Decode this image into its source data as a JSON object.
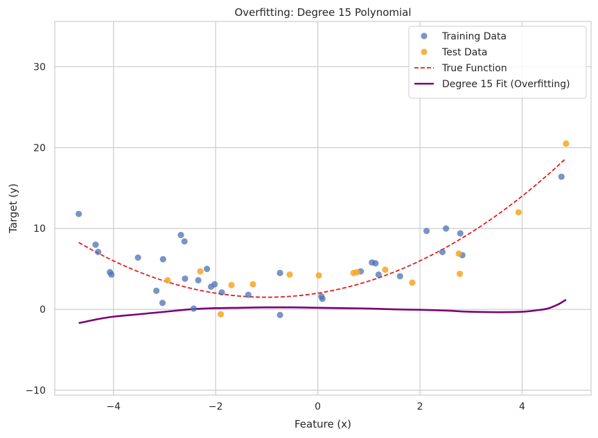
{
  "chart_data": {
    "type": "scatter",
    "title": "Overfitting: Degree 15 Polynomial",
    "xlabel": "Feature (x)",
    "ylabel": "Target (y)",
    "xlim": [
      -5.15,
      5.35
    ],
    "ylim": [
      -10.6,
      35.6
    ],
    "xticks": [
      -4,
      -2,
      0,
      2,
      4
    ],
    "yticks": [
      -10,
      0,
      10,
      20,
      30
    ],
    "grid": true,
    "legend_position": "top-right",
    "colors": {
      "training": "#4c72b0",
      "test": "#f5a623",
      "true_function": "#e31a1c",
      "fit": "#7a0177",
      "grid": "#cccccc"
    },
    "series": [
      {
        "name": "Training Data",
        "kind": "scatter",
        "points": [
          [
            -4.68,
            11.8
          ],
          [
            -4.35,
            8.0
          ],
          [
            -4.3,
            7.1
          ],
          [
            -4.07,
            4.6
          ],
          [
            -4.04,
            4.3
          ],
          [
            -3.52,
            6.4
          ],
          [
            -3.16,
            2.3
          ],
          [
            -3.04,
            0.8
          ],
          [
            -3.03,
            6.2
          ],
          [
            -2.68,
            9.2
          ],
          [
            -2.61,
            8.4
          ],
          [
            -2.6,
            3.8
          ],
          [
            -2.43,
            0.1
          ],
          [
            -2.34,
            3.6
          ],
          [
            -2.17,
            5.0
          ],
          [
            -2.09,
            2.8
          ],
          [
            -2.02,
            3.1
          ],
          [
            -1.88,
            2.1
          ],
          [
            -1.36,
            1.8
          ],
          [
            -0.74,
            4.5
          ],
          [
            -0.74,
            -0.7
          ],
          [
            0.07,
            1.6
          ],
          [
            0.09,
            1.3
          ],
          [
            0.84,
            4.7
          ],
          [
            1.06,
            5.8
          ],
          [
            1.13,
            5.7
          ],
          [
            1.19,
            4.3
          ],
          [
            1.61,
            4.1
          ],
          [
            2.13,
            9.7
          ],
          [
            2.44,
            7.1
          ],
          [
            2.51,
            10.0
          ],
          [
            2.79,
            9.4
          ],
          [
            2.83,
            6.7
          ],
          [
            4.77,
            16.4
          ]
        ]
      },
      {
        "name": "Test Data",
        "kind": "scatter",
        "points": [
          [
            -2.94,
            3.6
          ],
          [
            -2.3,
            4.7
          ],
          [
            -1.9,
            -0.6
          ],
          [
            -1.69,
            3.0
          ],
          [
            -1.27,
            3.1
          ],
          [
            -0.55,
            4.3
          ],
          [
            0.02,
            4.2
          ],
          [
            0.7,
            4.5
          ],
          [
            0.77,
            4.6
          ],
          [
            1.32,
            4.9
          ],
          [
            1.85,
            3.3
          ],
          [
            2.76,
            6.9
          ],
          [
            2.78,
            4.4
          ],
          [
            3.93,
            12.0
          ],
          [
            4.86,
            20.5
          ]
        ]
      },
      {
        "name": "True Function",
        "kind": "line",
        "style": "dashed",
        "equation": "0.5*x^2 + x + 2",
        "x_range": [
          -4.68,
          4.86
        ]
      },
      {
        "name": "Degree 15 Fit (Overfitting)",
        "kind": "line",
        "style": "solid",
        "points": [
          [
            -4.68,
            -1.7
          ],
          [
            -4.3,
            -1.2
          ],
          [
            -4.0,
            -0.9
          ],
          [
            -3.5,
            -0.6
          ],
          [
            -3.0,
            -0.3
          ],
          [
            -2.5,
            0.0
          ],
          [
            -2.0,
            0.15
          ],
          [
            -1.5,
            0.2
          ],
          [
            -1.0,
            0.25
          ],
          [
            -0.5,
            0.25
          ],
          [
            0.0,
            0.2
          ],
          [
            0.5,
            0.15
          ],
          [
            1.0,
            0.1
          ],
          [
            1.5,
            0.0
          ],
          [
            2.0,
            -0.05
          ],
          [
            2.5,
            -0.15
          ],
          [
            3.0,
            -0.3
          ],
          [
            3.5,
            -0.35
          ],
          [
            4.0,
            -0.3
          ],
          [
            4.3,
            -0.1
          ],
          [
            4.5,
            0.1
          ],
          [
            4.7,
            0.6
          ],
          [
            4.86,
            1.2
          ]
        ]
      }
    ]
  }
}
